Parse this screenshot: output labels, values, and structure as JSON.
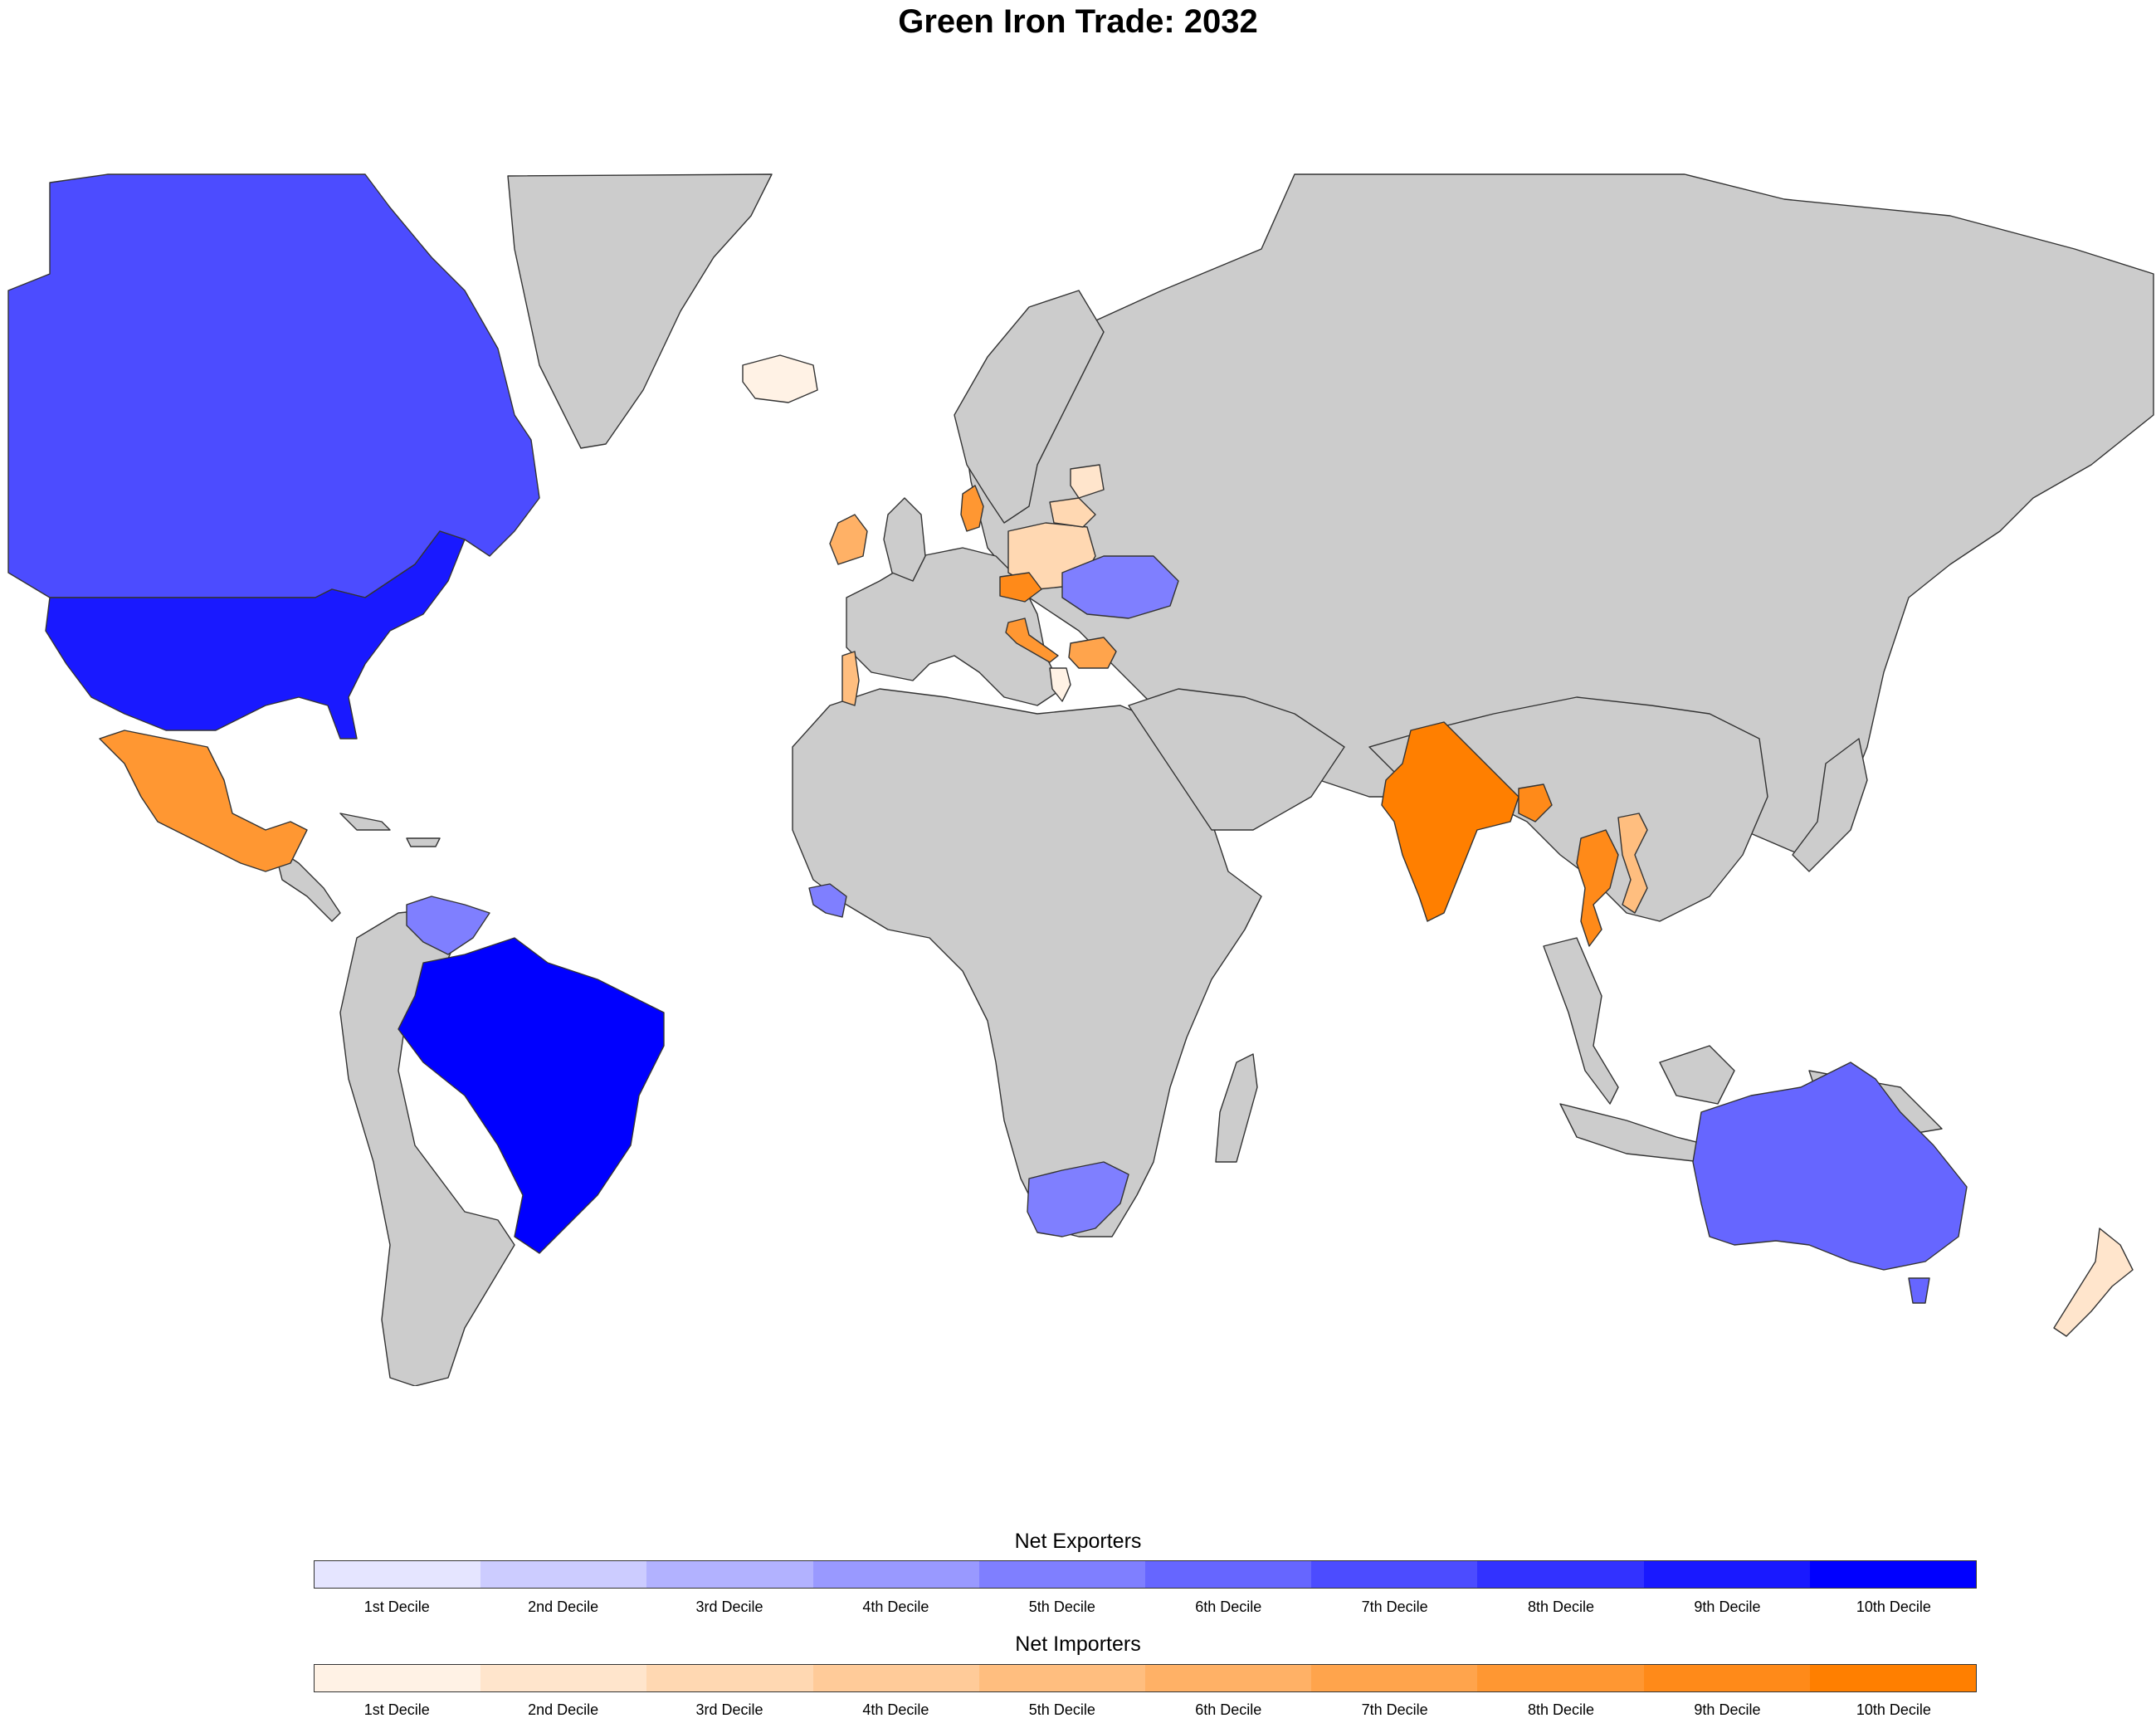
{
  "title": "Green Iron Trade: 2032",
  "colors": {
    "no_data": "#cccccc",
    "border": "#333333",
    "exporters": [
      "#e5e5ff",
      "#ccccff",
      "#b2b2ff",
      "#9999ff",
      "#7f7fff",
      "#6666ff",
      "#4c4cff",
      "#3232ff",
      "#1919ff",
      "#0000ff"
    ],
    "importers": [
      "#fff2e5",
      "#ffe5cc",
      "#ffd8b2",
      "#ffcb99",
      "#ffbe7f",
      "#ffb166",
      "#ffa44c",
      "#ff9732",
      "#ff8a19",
      "#ff7f00"
    ]
  },
  "legend": {
    "exporters": {
      "title": "Net Exporters",
      "labels": [
        "1st Decile",
        "2nd Decile",
        "3rd Decile",
        "4th Decile",
        "5th Decile",
        "6th Decile",
        "7th Decile",
        "8th Decile",
        "9th Decile",
        "10th Decile"
      ]
    },
    "importers": {
      "title": "Net Importers",
      "labels": [
        "1st Decile",
        "2nd Decile",
        "3rd Decile",
        "4th Decile",
        "5th Decile",
        "6th Decile",
        "7th Decile",
        "8th Decile",
        "9th Decile",
        "10th Decile"
      ]
    }
  },
  "countries": [
    {
      "name": "Brazil",
      "group": "exporters",
      "decile": 10
    },
    {
      "name": "United States",
      "group": "exporters",
      "decile": 9
    },
    {
      "name": "Canada",
      "group": "exporters",
      "decile": 7
    },
    {
      "name": "Australia",
      "group": "exporters",
      "decile": 6
    },
    {
      "name": "Guinea",
      "group": "exporters",
      "decile": 5
    },
    {
      "name": "Venezuela",
      "group": "exporters",
      "decile": 5
    },
    {
      "name": "South Africa",
      "group": "exporters",
      "decile": 5
    },
    {
      "name": "Ukraine",
      "group": "exporters",
      "decile": 5
    },
    {
      "name": "India",
      "group": "importers",
      "decile": 10
    },
    {
      "name": "Thailand",
      "group": "importers",
      "decile": 9
    },
    {
      "name": "Bangladesh",
      "group": "importers",
      "decile": 9
    },
    {
      "name": "Mexico",
      "group": "importers",
      "decile": 8
    },
    {
      "name": "Denmark",
      "group": "importers",
      "decile": 8
    },
    {
      "name": "Czech Republic",
      "group": "importers",
      "decile": 9
    },
    {
      "name": "Bulgaria",
      "group": "importers",
      "decile": 7
    },
    {
      "name": "Slovenia",
      "group": "importers",
      "decile": 8
    },
    {
      "name": "Ireland",
      "group": "importers",
      "decile": 6
    },
    {
      "name": "Vietnam",
      "group": "importers",
      "decile": 5
    },
    {
      "name": "Portugal",
      "group": "importers",
      "decile": 5
    },
    {
      "name": "Poland",
      "group": "importers",
      "decile": 3
    },
    {
      "name": "Lithuania",
      "group": "importers",
      "decile": 3
    },
    {
      "name": "Latvia",
      "group": "importers",
      "decile": 2
    },
    {
      "name": "New Zealand",
      "group": "importers",
      "decile": 2
    },
    {
      "name": "Iceland",
      "group": "importers",
      "decile": 1
    },
    {
      "name": "Greece",
      "group": "importers",
      "decile": 1
    }
  ]
}
